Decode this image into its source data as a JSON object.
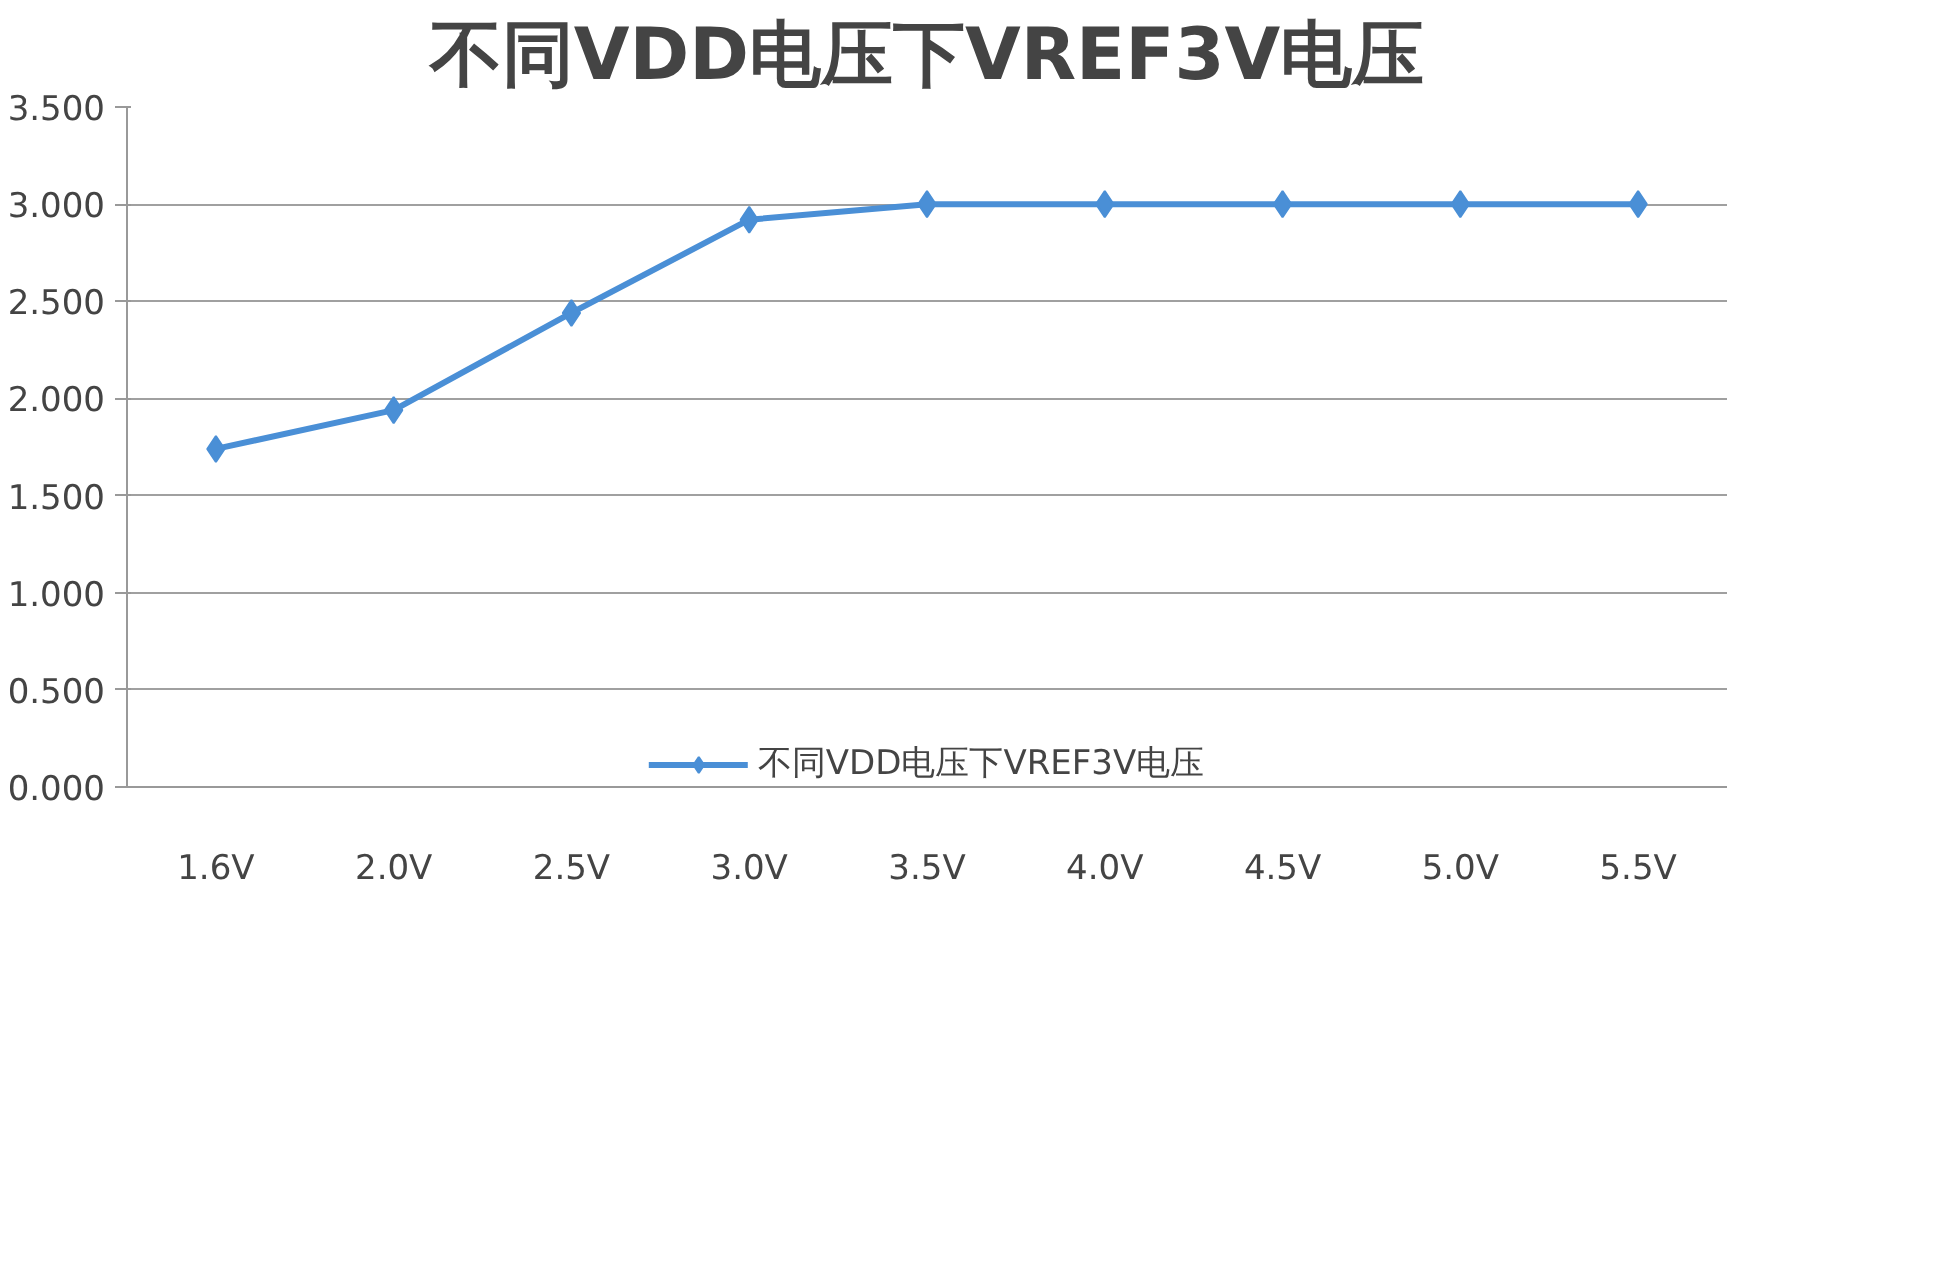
{
  "chart_data": {
    "type": "line",
    "title": "不同VDD电压下VREF3V电压",
    "categories": [
      "1.6V",
      "2.0V",
      "2.5V",
      "3.0V",
      "3.5V",
      "4.0V",
      "4.5V",
      "5.0V",
      "5.5V"
    ],
    "series": [
      {
        "name": "不同VDD电压下VREF3V电压",
        "color": "#4a8fd6",
        "values": [
          1.74,
          1.94,
          2.44,
          2.92,
          3.0,
          3.0,
          3.0,
          3.0,
          3.0
        ]
      }
    ],
    "ylim": [
      0,
      3.5
    ],
    "yticks": [
      {
        "value": 0,
        "label": "0.000"
      },
      {
        "value": 0.5,
        "label": "0.500"
      },
      {
        "value": 1,
        "label": "1.000"
      },
      {
        "value": 1.5,
        "label": "1.500"
      },
      {
        "value": 2,
        "label": "2.000"
      },
      {
        "value": 2.5,
        "label": "2.500"
      },
      {
        "value": 3,
        "label": "3.000"
      },
      {
        "value": 3.5,
        "label": "3.500"
      }
    ],
    "grid": "y",
    "legend": "bottom",
    "marker": "diamond",
    "line_style": "solid"
  }
}
